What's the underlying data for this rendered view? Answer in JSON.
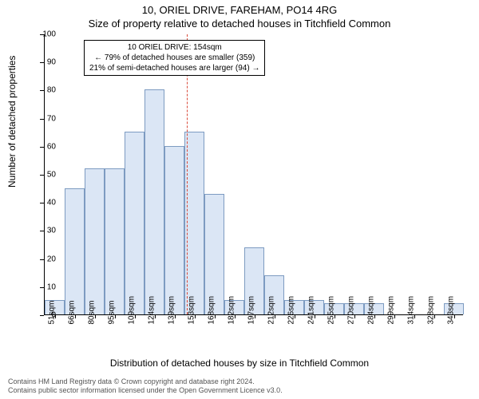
{
  "title": "10, ORIEL DRIVE, FAREHAM, PO14 4RG",
  "subtitle": "Size of property relative to detached houses in Titchfield Common",
  "y_axis_label": "Number of detached properties",
  "x_axis_label": "Distribution of detached houses by size in Titchfield Common",
  "chart": {
    "type": "histogram",
    "ylim": [
      0,
      100
    ],
    "ytick_step": 10,
    "bar_fill": "#dbe6f5",
    "bar_stroke": "#7d9bc1",
    "reference_line_color": "#d94a3a",
    "reference_line_dash": "3,3",
    "reference_value": 154,
    "x_start": 51,
    "x_step": 14.5,
    "bars": [
      {
        "label": "51sqm",
        "value": 5
      },
      {
        "label": "66sqm",
        "value": 45
      },
      {
        "label": "80sqm",
        "value": 52
      },
      {
        "label": "95sqm",
        "value": 52
      },
      {
        "label": "109sqm",
        "value": 65
      },
      {
        "label": "124sqm",
        "value": 80
      },
      {
        "label": "139sqm",
        "value": 60
      },
      {
        "label": "153sqm",
        "value": 65
      },
      {
        "label": "168sqm",
        "value": 43
      },
      {
        "label": "182sqm",
        "value": 5
      },
      {
        "label": "197sqm",
        "value": 24
      },
      {
        "label": "212sqm",
        "value": 14
      },
      {
        "label": "226sqm",
        "value": 5
      },
      {
        "label": "241sqm",
        "value": 5
      },
      {
        "label": "255sqm",
        "value": 4
      },
      {
        "label": "270sqm",
        "value": 4
      },
      {
        "label": "284sqm",
        "value": 4
      },
      {
        "label": "299sqm",
        "value": 0
      },
      {
        "label": "314sqm",
        "value": 0
      },
      {
        "label": "328sqm",
        "value": 0
      },
      {
        "label": "343sqm",
        "value": 4
      }
    ]
  },
  "annotation": {
    "line1": "10 ORIEL DRIVE: 154sqm",
    "line2": "← 79% of detached houses are smaller (359)",
    "line3": "21% of semi-detached houses are larger (94) →"
  },
  "footer": {
    "line1": "Contains HM Land Registry data © Crown copyright and database right 2024.",
    "line2": "Contains public sector information licensed under the Open Government Licence v3.0."
  }
}
